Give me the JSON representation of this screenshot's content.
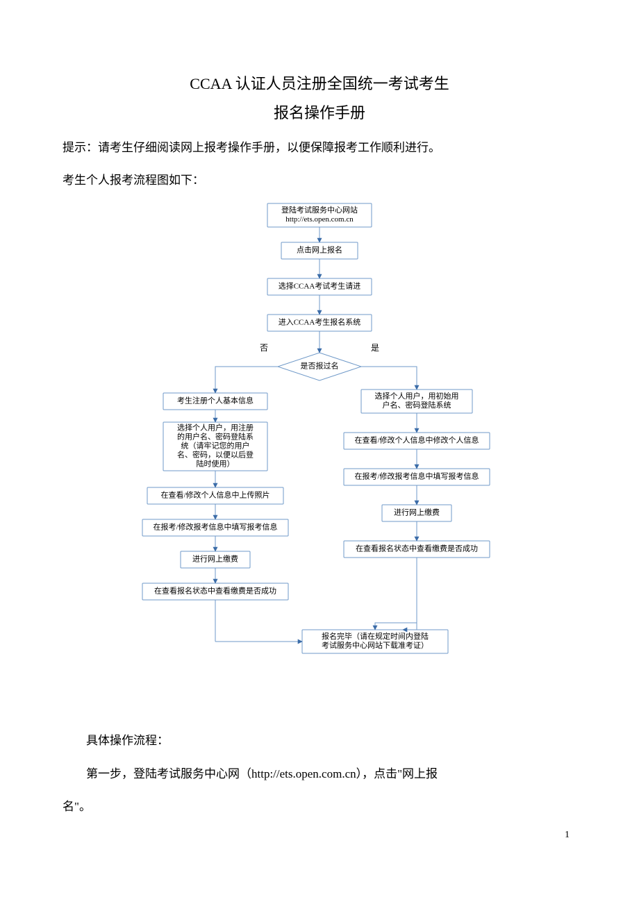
{
  "title_line1": "CCAA 认证人员注册全国统一考试考生",
  "title_line2": "报名操作手册",
  "tip": "提示：请考生仔细阅读网上报考操作手册，以便保障报考工作顺利进行。",
  "flow_intro": "考生个人报考流程图如下：",
  "post_flow_heading": "具体操作流程：",
  "step1_a": "第一步，登陆考试服务中心网（http://ets.open.com.cn），点击\"网上报",
  "step1_b": "名\"。",
  "page_number": "1",
  "flowchart": {
    "type": "flowchart",
    "background_color": "#ffffff",
    "node_border_color": "#6f99c8",
    "node_fill_color": "#ffffff",
    "node_border_width": 1,
    "edge_color": "#6f99c8",
    "edge_width": 1,
    "arrowhead_color": "#3b6ca8",
    "text_color": "#000000",
    "font_size": 11,
    "label_no": "否",
    "label_yes": "是",
    "nodes": {
      "n1": {
        "lines": [
          "登陆考试服务中心网站",
          "http://ets.open.com.cn"
        ]
      },
      "n2": {
        "lines": [
          "点击网上报名"
        ]
      },
      "n3": {
        "lines": [
          "选择CCAA考试考生请进"
        ]
      },
      "n4": {
        "lines": [
          "进入CCAA考生报名系统"
        ]
      },
      "decision": {
        "lines": [
          "是否报过名"
        ]
      },
      "ln1": {
        "lines": [
          "考生注册个人基本信息"
        ]
      },
      "ln2": {
        "lines": [
          "选择个人用户，用注册",
          "的用户名、密码登陆系",
          "统（请牢记您的用户",
          "名、密码，以便以后登",
          "陆时使用）"
        ]
      },
      "ln3": {
        "lines": [
          "在查看/修改个人信息中上传照片"
        ]
      },
      "ln4": {
        "lines": [
          "在报考/修改报考信息中填写报考信息"
        ]
      },
      "ln5": {
        "lines": [
          "进行网上缴费"
        ]
      },
      "ln6": {
        "lines": [
          "在查看报名状态中查看缴费是否成功"
        ]
      },
      "rn1": {
        "lines": [
          "选择个人用户，用初始用",
          "户名、密码登陆系统"
        ]
      },
      "rn2": {
        "lines": [
          "在查看/修改个人信息中修改个人信息"
        ]
      },
      "rn3": {
        "lines": [
          "在报考/修改报考信息中填写报考信息"
        ]
      },
      "rn4": {
        "lines": [
          "进行网上缴费"
        ]
      },
      "rn5": {
        "lines": [
          "在查看报名状态中查看缴费是否成功"
        ]
      },
      "final": {
        "lines": [
          "报名完毕（请在规定时间内登陆",
          "考试服务中心网站下载准考证）"
        ]
      }
    }
  }
}
